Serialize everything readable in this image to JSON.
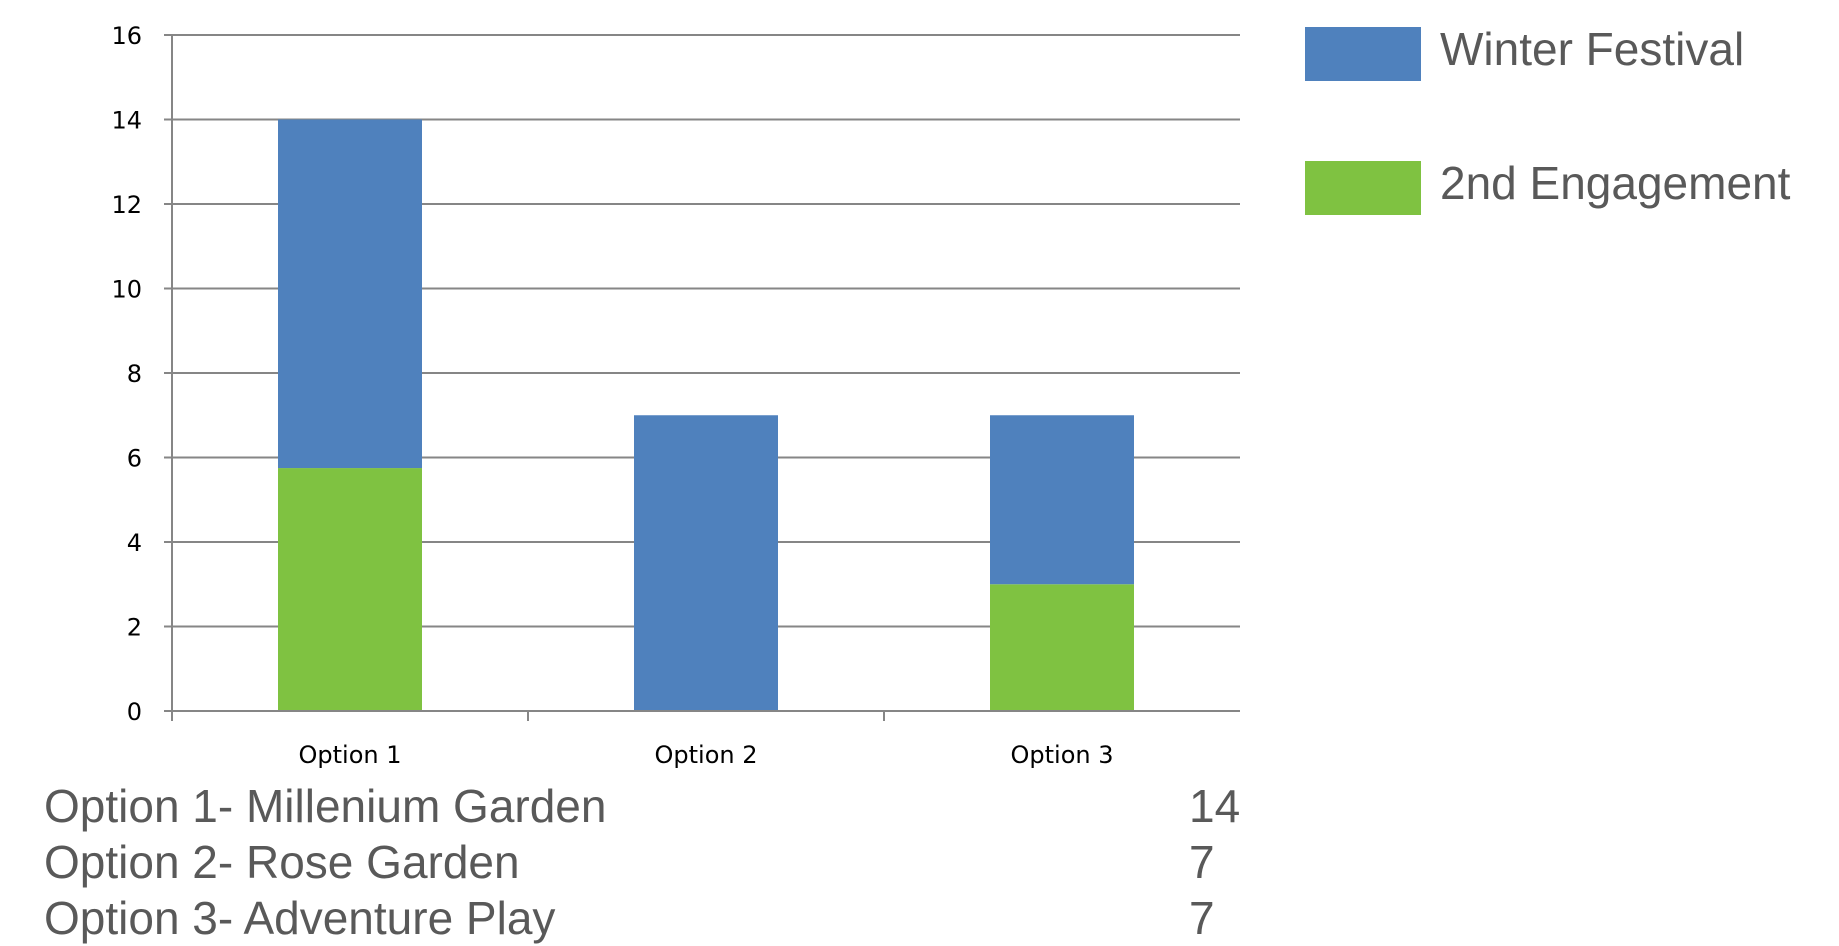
{
  "chart_data": {
    "type": "bar",
    "stacked": true,
    "categories": [
      "Option 1",
      "Option 2",
      "Option 3"
    ],
    "series": [
      {
        "name": "2nd Engagement",
        "values": [
          5.75,
          0,
          3
        ],
        "color": "#7fc241"
      },
      {
        "name": "Winter Festival",
        "values": [
          8.25,
          7,
          4
        ],
        "color": "#4f81bd"
      }
    ],
    "ylim": [
      0,
      16
    ],
    "yticks": [
      0,
      2,
      4,
      6,
      8,
      10,
      12,
      14,
      16
    ],
    "grid": true,
    "legend_position": "right",
    "legend_order": [
      "Winter Festival",
      "2nd Engagement"
    ]
  },
  "summary": [
    {
      "label": "Option 1- Millenium Garden",
      "value": "14"
    },
    {
      "label": "Option 2- Rose Garden",
      "value": "7"
    },
    {
      "label": "Option 3- Adventure Play",
      "value": "7"
    }
  ]
}
